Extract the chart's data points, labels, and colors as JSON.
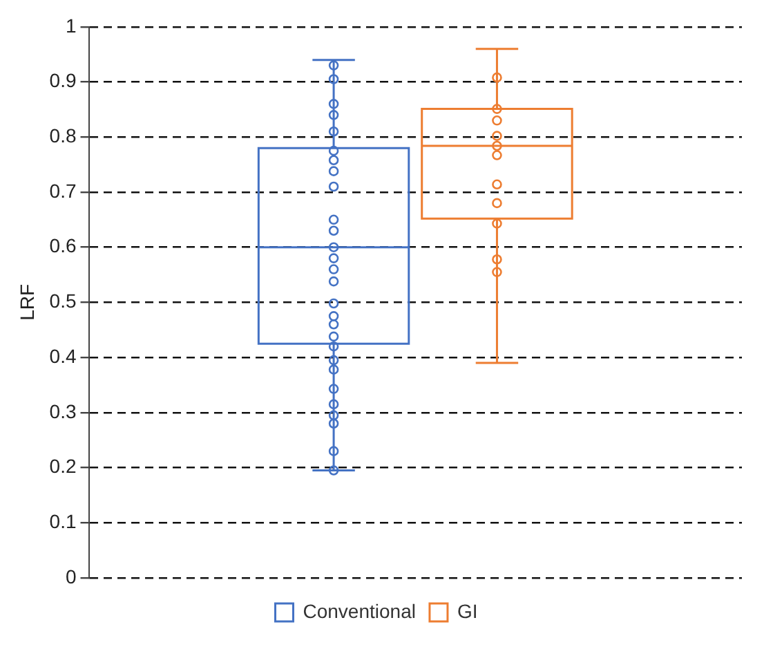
{
  "chart_data": {
    "type": "box",
    "ylabel": "LRF",
    "categories": [
      null
    ],
    "ylim": [
      0,
      1
    ],
    "yticks": [
      0,
      0.1,
      0.2,
      0.3,
      0.4,
      0.5,
      0.6,
      0.7,
      0.8,
      0.9,
      1
    ],
    "grid": "y",
    "legend": "bottom",
    "marker": "circle",
    "series": [
      {
        "name": "Conventional",
        "color": "#4472c4",
        "boxes": [
          {
            "low": 0.195,
            "q1": 0.425,
            "median": 0.6,
            "q3": 0.78,
            "high": 0.94
          }
        ]
      },
      {
        "name": "GI",
        "color": "#ed7d31",
        "boxes": [
          {
            "low": 0.39,
            "q1": 0.652,
            "median": 0.784,
            "q3": 0.851,
            "high": 0.96
          }
        ]
      },
      {
        "type": "scatter",
        "color": "#4472c4",
        "x": [
          null,
          null,
          null,
          null,
          null,
          null,
          null,
          null,
          null,
          null,
          null,
          null,
          null,
          null,
          null,
          null,
          null,
          null,
          null,
          null,
          null,
          null,
          null,
          null,
          null,
          null,
          null,
          null
        ],
        "values": [
          0.93,
          0.905,
          0.86,
          0.84,
          0.81,
          0.775,
          0.758,
          0.738,
          0.71,
          0.65,
          0.63,
          0.6,
          0.58,
          0.56,
          0.538,
          0.498,
          0.475,
          0.46,
          0.438,
          0.42,
          0.395,
          0.378,
          0.343,
          0.315,
          0.295,
          0.28,
          0.23,
          0.195
        ]
      },
      {
        "type": "scatter",
        "color": "#ed7d31",
        "x": [
          null,
          null,
          null,
          null,
          null,
          null,
          null,
          null,
          null,
          null,
          null
        ],
        "values": [
          0.908,
          0.851,
          0.83,
          0.802,
          0.784,
          0.767,
          0.714,
          0.68,
          0.643,
          0.578,
          0.555
        ]
      }
    ]
  }
}
